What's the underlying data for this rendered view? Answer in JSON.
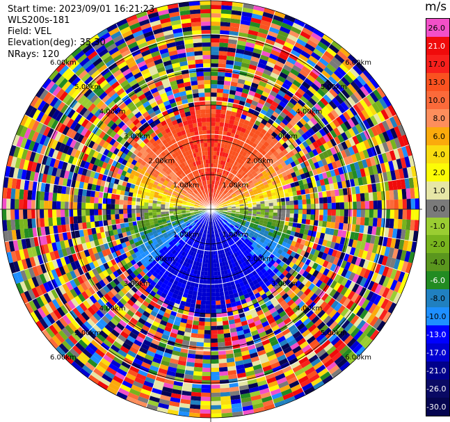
{
  "info": {
    "start_time": "Start time: 2023/09/01 16:21:23",
    "instrument": "WLS200s-181",
    "field": "Field: VEL",
    "elevation": "Elevation(deg): 35.30",
    "nrays": "NRays: 120"
  },
  "colorbar": {
    "unit": "m/s",
    "segments": [
      {
        "label": "26.0",
        "color": "#f250c8",
        "text": "#000000"
      },
      {
        "label": "21.0",
        "color": "#f00b0b",
        "text": "#ffffff"
      },
      {
        "label": "17.0",
        "color": "#f8201c",
        "text": "#000000"
      },
      {
        "label": "13.0",
        "color": "#fa5220",
        "text": "#000000"
      },
      {
        "label": "10.0",
        "color": "#fb6a3a",
        "text": "#000000"
      },
      {
        "label": "8.0",
        "color": "#fd8e5c",
        "text": "#000000"
      },
      {
        "label": "6.0",
        "color": "#fbaa0c",
        "text": "#000000"
      },
      {
        "label": "4.0",
        "color": "#fadc10",
        "text": "#000000"
      },
      {
        "label": "2.0",
        "color": "#fcfc06",
        "text": "#000000"
      },
      {
        "label": "1.0",
        "color": "#e6e6a6",
        "text": "#000000"
      },
      {
        "label": "0.0",
        "color": "#7a7a7a",
        "text": "#000000"
      },
      {
        "label": "-1.0",
        "color": "#9acd32",
        "text": "#000000"
      },
      {
        "label": "-2.0",
        "color": "#78b41e",
        "text": "#000000"
      },
      {
        "label": "-4.0",
        "color": "#5a961e",
        "text": "#000000"
      },
      {
        "label": "-6.0",
        "color": "#228b22",
        "text": "#ffffff"
      },
      {
        "label": "-8.0",
        "color": "#2080c0",
        "text": "#000000"
      },
      {
        "label": "-10.0",
        "color": "#1e8fff",
        "text": "#000000"
      },
      {
        "label": "-13.0",
        "color": "#0000ff",
        "text": "#ffffff"
      },
      {
        "label": "-17.0",
        "color": "#0000d2",
        "text": "#ffffff"
      },
      {
        "label": "-21.0",
        "color": "#00008b",
        "text": "#ffffff"
      },
      {
        "label": "-26.0",
        "color": "#0a0a64",
        "text": "#ffffff"
      },
      {
        "label": "-30.0",
        "color": "#050550",
        "text": "#ffffff"
      }
    ]
  },
  "chart_data": {
    "type": "heatmap",
    "projection": "polar-ppi",
    "field": "VEL",
    "unit": "m/s",
    "rays": 120,
    "max_range_km": 6.0,
    "range_ring_labels": [
      "1.00km",
      "2.00km",
      "3.00km",
      "4.00km",
      "5.00km",
      "6.00km"
    ],
    "range_rings_km": [
      1,
      2,
      3,
      4,
      5,
      6
    ],
    "label_bearings_deg": [
      315,
      45,
      135,
      225
    ],
    "velocity_pattern": {
      "north_sector": "positive 10-17 m/s (orange/red) inside ~2.5 km",
      "south_sector": "negative -13 to -21 m/s (blue) inside ~2.5 km",
      "east_west": "near-zero velocities (yellow / grey / green)",
      "beyond_3km": "noise (mixed colors)"
    },
    "colors": {
      "ring": "#000000",
      "grid": "#ffffff"
    }
  }
}
